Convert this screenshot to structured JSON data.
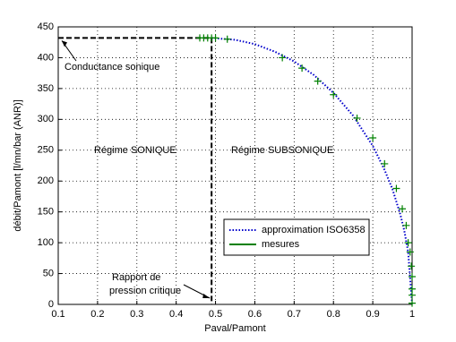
{
  "chart_data": {
    "type": "line",
    "xlabel": "Paval/Pamont",
    "ylabel": "débit/Pamont [l/mn/bar (ANR)]",
    "xlim": [
      0.1,
      1
    ],
    "ylim": [
      0,
      450
    ],
    "xticks": [
      0.1,
      0.2,
      0.3,
      0.4,
      0.5,
      0.6,
      0.7,
      0.8,
      0.9,
      1
    ],
    "yticks": [
      0,
      50,
      100,
      150,
      200,
      250,
      300,
      350,
      400,
      450
    ],
    "grid": true,
    "series": [
      {
        "name": "approximation ISO6358",
        "color": "#0000cc",
        "style": "dotted",
        "x": [
          0.49,
          0.55,
          0.6,
          0.65,
          0.7,
          0.75,
          0.8,
          0.85,
          0.9,
          0.93,
          0.95,
          0.97,
          0.98,
          0.99,
          1.0
        ],
        "values": [
          432,
          429,
          422,
          410,
          394,
          372,
          343,
          306,
          257,
          218,
          187,
          146,
          120,
          85,
          0
        ]
      },
      {
        "name": "mesures",
        "color": "#008000",
        "style": "plus",
        "x": [
          0.46,
          0.47,
          0.48,
          0.49,
          0.5,
          0.53,
          0.67,
          0.72,
          0.76,
          0.8,
          0.86,
          0.9,
          0.93,
          0.96,
          0.975,
          0.985,
          0.99,
          0.995,
          0.998,
          1.0,
          1.0,
          1.0,
          1.0
        ],
        "values": [
          432,
          432,
          432,
          432,
          432,
          430,
          400,
          383,
          362,
          340,
          302,
          270,
          228,
          188,
          155,
          128,
          100,
          85,
          62,
          45,
          25,
          15,
          2
        ]
      }
    ],
    "legend": "lower-center",
    "sonic_conductance": 432,
    "critical_ratio": 0.49,
    "annotations": {
      "conductance": "Conductance sonique",
      "sonic": "Régime SONIQUE",
      "subsonic": "Régime SUBSONIQUE",
      "critical": [
        "Rapport de",
        "pression critique"
      ]
    }
  }
}
